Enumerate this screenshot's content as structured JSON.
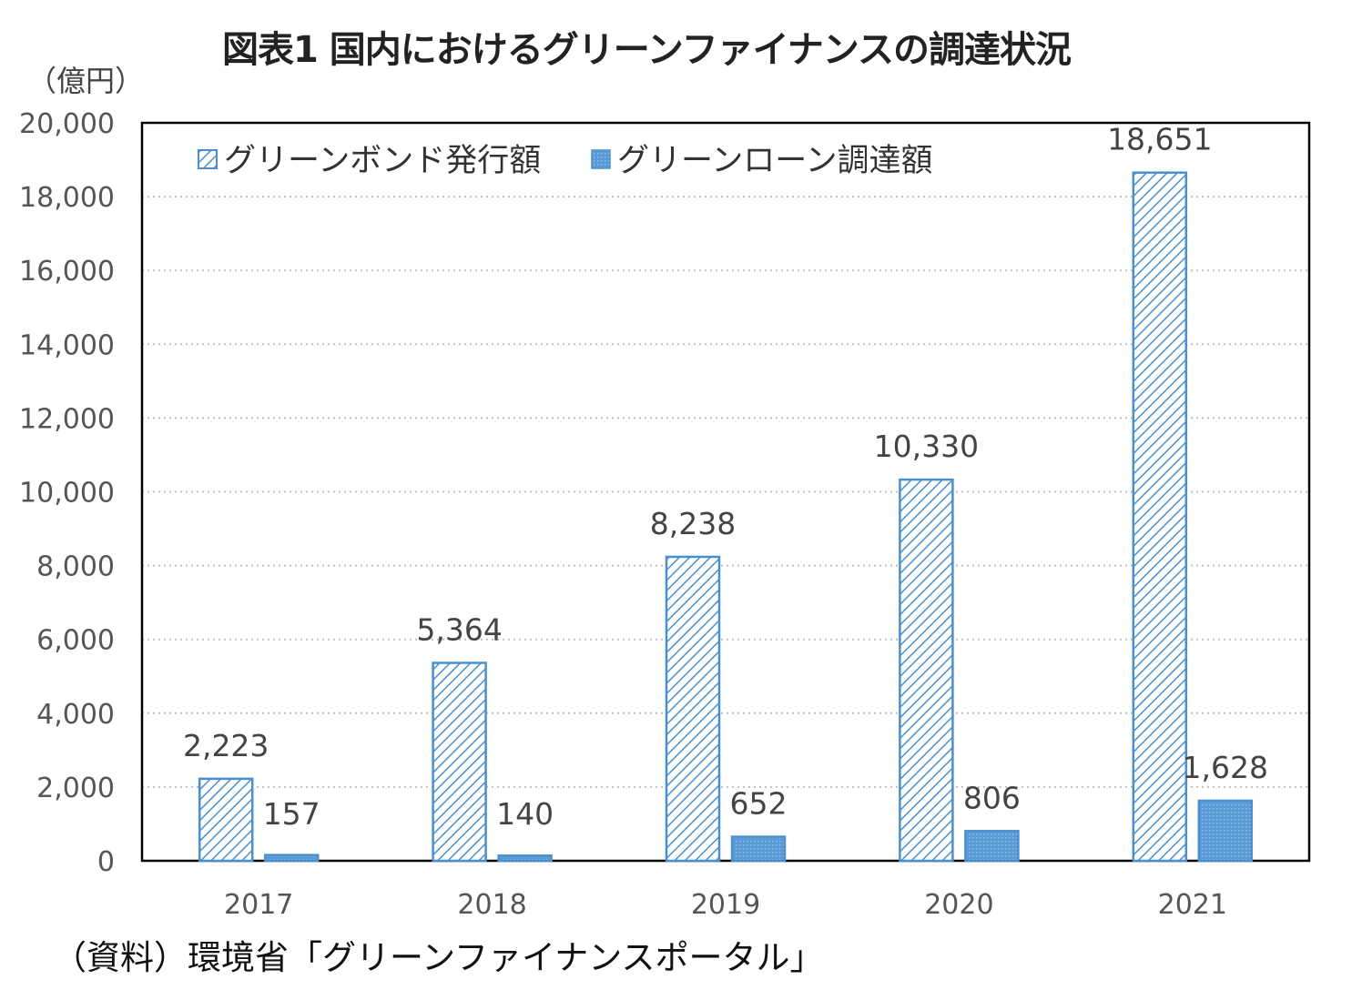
{
  "title": "図表1  国内におけるグリーンファイナンスの調達状況",
  "unit_label": "（億円）",
  "source": "（資料）環境省「グリーンファイナンスポータル」",
  "colors": {
    "bar_stroke": "#4a8fcf",
    "loan_fill": "#5b9bd5",
    "grid": "#bfbfbf",
    "axis": "#000000"
  },
  "chart_data": {
    "type": "bar",
    "categories": [
      "2017",
      "2018",
      "2019",
      "2020",
      "2021"
    ],
    "series": [
      {
        "name": "グリーンボンド発行額",
        "values": [
          2223,
          5364,
          8238,
          10330,
          18651
        ],
        "labels": [
          "2,223",
          "5,364",
          "8,238",
          "10,330",
          "18,651"
        ],
        "pattern": "diagonal-hatch"
      },
      {
        "name": "グリーンローン調達額",
        "values": [
          157,
          140,
          652,
          806,
          1628
        ],
        "labels": [
          "157",
          "140",
          "652",
          "806",
          "1,628"
        ],
        "pattern": "dotted"
      }
    ],
    "ylim": [
      0,
      20000
    ],
    "yticks": [
      0,
      2000,
      4000,
      6000,
      8000,
      10000,
      12000,
      14000,
      16000,
      18000,
      20000
    ],
    "ytick_labels": [
      "0",
      "2,000",
      "4,000",
      "6,000",
      "8,000",
      "10,000",
      "12,000",
      "14,000",
      "16,000",
      "18,000",
      "20,000"
    ],
    "grid": true,
    "legend_position": "top-left"
  }
}
